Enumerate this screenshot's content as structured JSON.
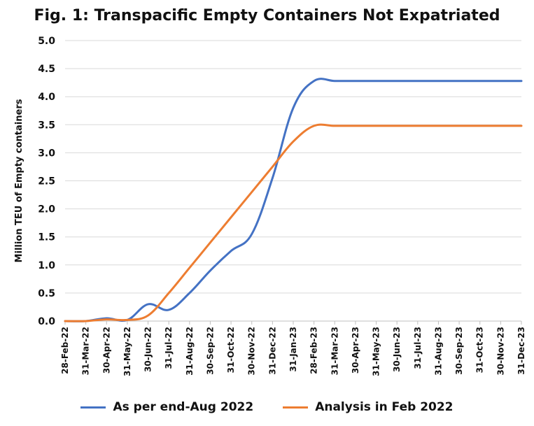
{
  "chart_data": {
    "type": "line",
    "title": "Fig. 1: Transpacific Empty Containers Not Expatriated",
    "ylabel": "Million TEU of Empty containers",
    "xlabel": "",
    "ylim": [
      0,
      5.0
    ],
    "yticks": [
      "0.0",
      "0.5",
      "1.0",
      "1.5",
      "2.0",
      "2.5",
      "3.0",
      "3.5",
      "4.0",
      "4.5",
      "5.0"
    ],
    "categories": [
      "28-Feb-22",
      "31-Mar-22",
      "30-Apr-22",
      "31-May-22",
      "30-Jun-22",
      "31-Jul-22",
      "31-Aug-22",
      "30-Sep-22",
      "31-Oct-22",
      "30-Nov-22",
      "31-Dec-22",
      "31-Jan-23",
      "28-Feb-23",
      "31-Mar-23",
      "30-Apr-23",
      "31-May-23",
      "30-Jun-23",
      "31-Jul-23",
      "31-Aug-23",
      "30-Sep-23",
      "31-Oct-23",
      "30-Nov-23",
      "31-Dec-23"
    ],
    "grid": true,
    "legend_position": "bottom",
    "series": [
      {
        "name": "As per end-Aug 2022",
        "color": "#4472C4",
        "values": [
          0,
          0,
          0.05,
          0.02,
          0.3,
          0.2,
          0.5,
          0.9,
          1.25,
          1.55,
          2.55,
          3.8,
          4.28,
          4.28,
          4.28,
          4.28,
          4.28,
          4.28,
          4.28,
          4.28,
          4.28,
          4.28,
          4.28
        ]
      },
      {
        "name": "Analysis in Feb 2022",
        "color": "#ED7D31",
        "values": [
          0,
          0,
          0.03,
          0.02,
          0.1,
          0.5,
          0.95,
          1.4,
          1.85,
          2.3,
          2.75,
          3.2,
          3.48,
          3.48,
          3.48,
          3.48,
          3.48,
          3.48,
          3.48,
          3.48,
          3.48,
          3.48,
          3.48
        ]
      }
    ]
  }
}
